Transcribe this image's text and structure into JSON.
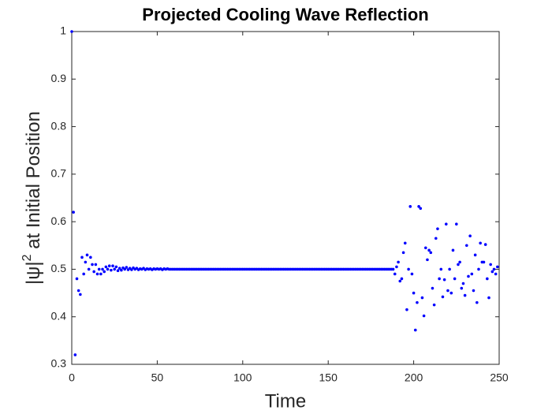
{
  "chart_data": {
    "type": "scatter",
    "title": "Projected Cooling Wave Reflection",
    "xlabel": "Time",
    "ylabel": [
      "|ψ|",
      "2",
      " at Initial Position"
    ],
    "color": "#0000ff",
    "xlim": [
      0,
      250
    ],
    "xticks": [
      0,
      50,
      100,
      150,
      200,
      250
    ],
    "ylim": [
      0.3,
      1
    ],
    "yticks": [
      0.3,
      0.4,
      0.5,
      0.6,
      0.7,
      0.8,
      0.9,
      1
    ],
    "x": [
      0,
      1,
      2,
      3,
      4,
      5,
      6,
      7,
      8,
      9,
      10,
      11,
      12,
      13,
      14,
      15,
      16,
      17,
      18,
      19,
      20,
      21,
      22,
      23,
      24,
      25,
      26,
      27,
      28,
      29,
      30,
      31,
      32,
      33,
      34,
      35,
      36,
      37,
      38,
      39,
      40,
      41,
      42,
      43,
      44,
      45,
      46,
      47,
      48,
      49,
      50,
      51,
      52,
      53,
      54,
      55,
      56,
      57,
      58,
      59,
      60,
      61,
      62,
      63,
      64,
      65,
      66,
      67,
      68,
      69,
      70,
      71,
      72,
      73,
      74,
      75,
      76,
      77,
      78,
      79,
      80,
      81,
      82,
      83,
      84,
      85,
      86,
      87,
      88,
      89,
      90,
      91,
      92,
      93,
      94,
      95,
      96,
      97,
      98,
      99,
      100,
      101,
      102,
      103,
      104,
      105,
      106,
      107,
      108,
      109,
      110,
      111,
      112,
      113,
      114,
      115,
      116,
      117,
      118,
      119,
      120,
      121,
      122,
      123,
      124,
      125,
      126,
      127,
      128,
      129,
      130,
      131,
      132,
      133,
      134,
      135,
      136,
      137,
      138,
      139,
      140,
      141,
      142,
      143,
      144,
      145,
      146,
      147,
      148,
      149,
      150,
      151,
      152,
      153,
      154,
      155,
      156,
      157,
      158,
      159,
      160,
      161,
      162,
      163,
      164,
      165,
      166,
      167,
      168,
      169,
      170,
      171,
      172,
      173,
      174,
      175,
      176,
      177,
      178,
      179,
      180,
      181,
      182,
      183,
      184,
      185,
      186,
      187,
      188,
      189,
      190,
      191,
      192,
      193,
      194,
      195,
      196,
      197,
      198,
      199,
      200,
      201,
      202,
      203,
      204,
      205,
      206,
      207,
      208,
      209,
      210,
      211,
      212,
      213,
      214,
      215,
      216,
      217,
      218,
      219,
      220,
      221,
      222,
      223,
      224,
      225,
      226,
      227,
      228,
      229,
      230,
      231,
      232,
      233,
      234,
      235,
      236,
      237,
      238,
      239,
      240,
      241,
      242,
      243,
      244,
      245,
      246,
      247,
      248,
      249
    ],
    "values": [
      1,
      0.62,
      0.32,
      0.48,
      0.455,
      0.447,
      0.525,
      0.49,
      0.515,
      0.53,
      0.5,
      0.525,
      0.51,
      0.495,
      0.51,
      0.49,
      0.5,
      0.49,
      0.5,
      0.495,
      0.505,
      0.5,
      0.507,
      0.498,
      0.507,
      0.5,
      0.505,
      0.497,
      0.502,
      0.498,
      0.503,
      0.5,
      0.504,
      0.499,
      0.502,
      0.499,
      0.503,
      0.5,
      0.502,
      0.499,
      0.501,
      0.5,
      0.502,
      0.499,
      0.501,
      0.5,
      0.501,
      0.499,
      0.501,
      0.5,
      0.501,
      0.5,
      0.501,
      0.499,
      0.501,
      0.5,
      0.501,
      0.5,
      0.5,
      0.5,
      0.5,
      0.5,
      0.5,
      0.5,
      0.5,
      0.5,
      0.5,
      0.5,
      0.5,
      0.5,
      0.5,
      0.5,
      0.5,
      0.5,
      0.5,
      0.5,
      0.5,
      0.5,
      0.5,
      0.5,
      0.5,
      0.5,
      0.5,
      0.5,
      0.5,
      0.5,
      0.5,
      0.5,
      0.5,
      0.5,
      0.5,
      0.5,
      0.5,
      0.5,
      0.5,
      0.5,
      0.5,
      0.5,
      0.5,
      0.5,
      0.5,
      0.5,
      0.5,
      0.5,
      0.5,
      0.5,
      0.5,
      0.5,
      0.5,
      0.5,
      0.5,
      0.5,
      0.5,
      0.5,
      0.5,
      0.5,
      0.5,
      0.5,
      0.5,
      0.5,
      0.5,
      0.5,
      0.5,
      0.5,
      0.5,
      0.5,
      0.5,
      0.5,
      0.5,
      0.5,
      0.5,
      0.5,
      0.5,
      0.5,
      0.5,
      0.5,
      0.5,
      0.5,
      0.5,
      0.5,
      0.5,
      0.5,
      0.5,
      0.5,
      0.5,
      0.5,
      0.5,
      0.5,
      0.5,
      0.5,
      0.5,
      0.5,
      0.5,
      0.5,
      0.5,
      0.5,
      0.5,
      0.5,
      0.5,
      0.5,
      0.5,
      0.5,
      0.5,
      0.5,
      0.5,
      0.5,
      0.5,
      0.5,
      0.5,
      0.5,
      0.5,
      0.5,
      0.5,
      0.5,
      0.5,
      0.5,
      0.5,
      0.5,
      0.5,
      0.5,
      0.5,
      0.5,
      0.5,
      0.5,
      0.5,
      0.5,
      0.5,
      0.5,
      0.5,
      0.49,
      0.505,
      0.515,
      0.475,
      0.48,
      0.535,
      0.555,
      0.415,
      0.5,
      0.632,
      0.49,
      0.45,
      0.372,
      0.43,
      0.632,
      0.628,
      0.44,
      0.402,
      0.545,
      0.52,
      0.54,
      0.535,
      0.46,
      0.425,
      0.565,
      0.585,
      0.48,
      0.5,
      0.442,
      0.478,
      0.595,
      0.455,
      0.5,
      0.45,
      0.54,
      0.48,
      0.595,
      0.51,
      0.515,
      0.46,
      0.47,
      0.445,
      0.55,
      0.485,
      0.57,
      0.49,
      0.455,
      0.53,
      0.43,
      0.5,
      0.555,
      0.515,
      0.515,
      0.552,
      0.48,
      0.44,
      0.51,
      0.495,
      0.5,
      0.49,
      0.505
    ]
  }
}
